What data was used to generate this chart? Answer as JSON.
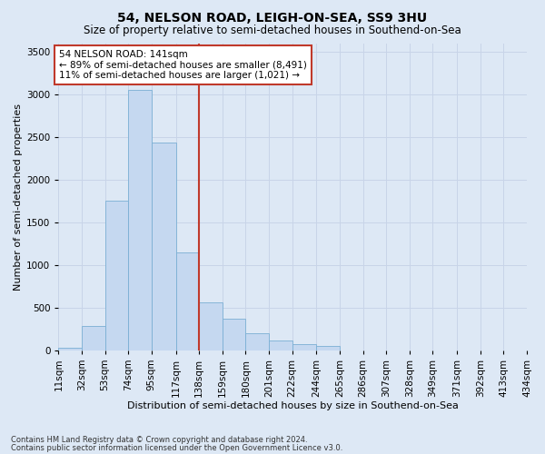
{
  "title": "54, NELSON ROAD, LEIGH-ON-SEA, SS9 3HU",
  "subtitle": "Size of property relative to semi-detached houses in Southend-on-Sea",
  "xlabel": "Distribution of semi-detached houses by size in Southend-on-Sea",
  "ylabel": "Number of semi-detached properties",
  "footnote1": "Contains HM Land Registry data © Crown copyright and database right 2024.",
  "footnote2": "Contains public sector information licensed under the Open Government Licence v3.0.",
  "annotation_text_line1": "54 NELSON ROAD: 141sqm",
  "annotation_text_line2": "← 89% of semi-detached houses are smaller (8,491)",
  "annotation_text_line3": "11% of semi-detached houses are larger (1,021) →",
  "bar_color": "#c5d8f0",
  "bar_edge_color": "#7aafd4",
  "vline_color": "#c0392b",
  "annotation_box_color": "#ffffff",
  "annotation_box_edge": "#c0392b",
  "grid_color": "#c8d4e8",
  "background_color": "#dde8f5",
  "ylim": [
    0,
    3600
  ],
  "vline_x": 138,
  "bin_edges": [
    11,
    32,
    53,
    74,
    95,
    117,
    138,
    159,
    180,
    201,
    222,
    244,
    265,
    286,
    307,
    328,
    349,
    371,
    392,
    413,
    434
  ],
  "bin_labels": [
    "11sqm",
    "32sqm",
    "53sqm",
    "74sqm",
    "95sqm",
    "117sqm",
    "138sqm",
    "159sqm",
    "180sqm",
    "201sqm",
    "222sqm",
    "244sqm",
    "265sqm",
    "286sqm",
    "307sqm",
    "328sqm",
    "349sqm",
    "371sqm",
    "392sqm",
    "413sqm",
    "434sqm"
  ],
  "bar_heights": [
    30,
    290,
    1750,
    3050,
    2430,
    1150,
    560,
    370,
    195,
    120,
    75,
    50,
    0,
    0,
    0,
    0,
    0,
    0,
    0,
    0
  ],
  "yticks": [
    0,
    500,
    1000,
    1500,
    2000,
    2500,
    3000,
    3500
  ],
  "title_fontsize": 10,
  "subtitle_fontsize": 8.5,
  "ylabel_fontsize": 8,
  "xlabel_fontsize": 8,
  "tick_fontsize": 7.5,
  "footnote_fontsize": 6,
  "annot_fontsize": 7.5
}
